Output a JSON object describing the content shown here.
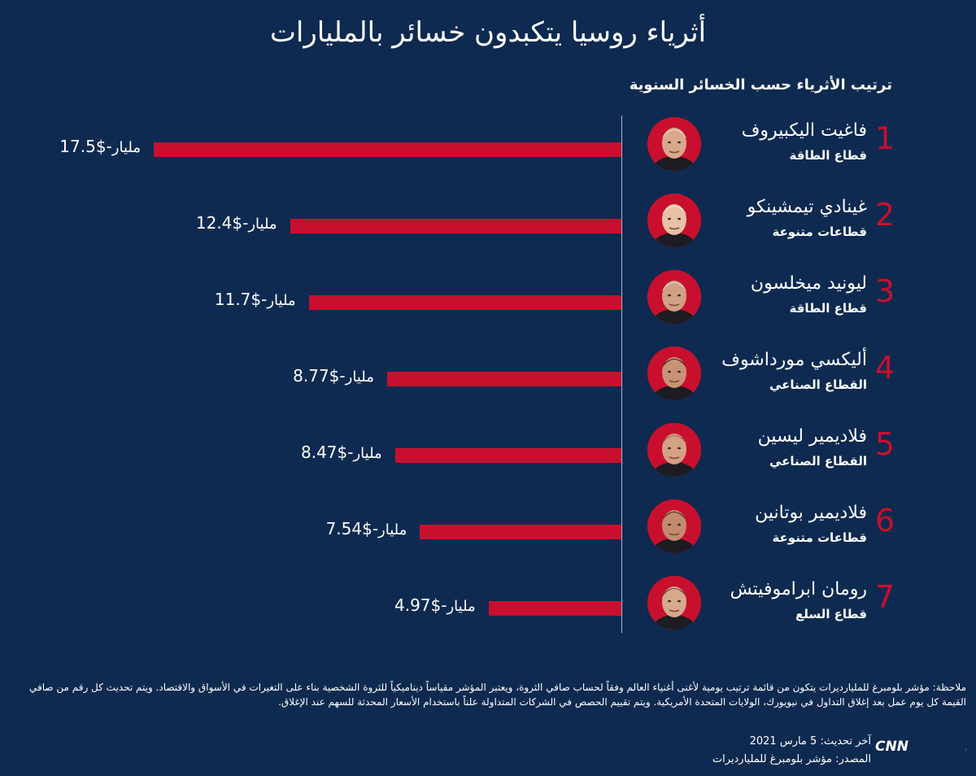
{
  "title": "أثرياء روسيا يتكبدون خسائر بالمليارات",
  "subtitle": "ترتيب الأثرياء حسب الخسائر السنوية",
  "unit_label": "مليار",
  "colors": {
    "background": "#0e2a50",
    "bar": "#c8102e",
    "text": "#ffffff",
    "axis": "#a9b6c8"
  },
  "chart_data": {
    "type": "bar",
    "orientation": "horizontal",
    "title": "أثرياء روسيا يتكبدون خسائر بالمليارات",
    "subtitle": "ترتيب الأثرياء حسب الخسائر السنوية",
    "xlim": [
      -17.5,
      0
    ],
    "unit": "مليار",
    "items": [
      {
        "rank": "1",
        "name": "فاغيت اليكبيروف",
        "sector": "قطاع الطاقة",
        "value": -17.5,
        "label": "-$17.5"
      },
      {
        "rank": "2",
        "name": "غينادي تيمشينكو",
        "sector": "قطاعات متنوعة",
        "value": -12.4,
        "label": "-$12.4"
      },
      {
        "rank": "3",
        "name": "ليونيد ميخلسون",
        "sector": "قطاع الطاقة",
        "value": -11.7,
        "label": "-$11.7"
      },
      {
        "rank": "4",
        "name": "أليكسي مورداشوف",
        "sector": "القطاع الصناعي",
        "value": -8.77,
        "label": "-$8.77"
      },
      {
        "rank": "5",
        "name": "فلاديمير ليسين",
        "sector": "القطاع الصناعي",
        "value": -8.47,
        "label": "-$8.47"
      },
      {
        "rank": "6",
        "name": "فلاديمير بوتانين",
        "sector": "قطاعات متنوعة",
        "value": -7.54,
        "label": "-$7.54"
      },
      {
        "rank": "7",
        "name": "رومان ابراموفيتش",
        "sector": "قطاع السلع",
        "value": -4.97,
        "label": "-$4.97"
      }
    ]
  },
  "footer": {
    "note": "ملاحظة: مؤشر بلومبرغ للمليارديرات يتكون من قائمة ترتيب يومية لأغنى أغنياء العالم وفقاً لحساب صافي الثروة، ويعتبر المؤشر مقياساً ديناميكياً للثروة الشخصية بناء على التغيرات في الأسواق والاقتصاد. ويتم تحديث كل رقم من صافي القيمة كل يوم عمل بعد إغلاق التداول في نيويورك، الولايات المتحدة الأمريكية. ويتم تقييم الحصص في الشركات المتداولة علناً باستخدام الأسعار المحدثة للسهم عند الإغلاق.",
    "updated": "آخر تحديث: 5 مارس 2021",
    "source": "المصدر: مؤشر بلومبرغ للمليارديرات",
    "logo_text": "العربية CNN"
  }
}
